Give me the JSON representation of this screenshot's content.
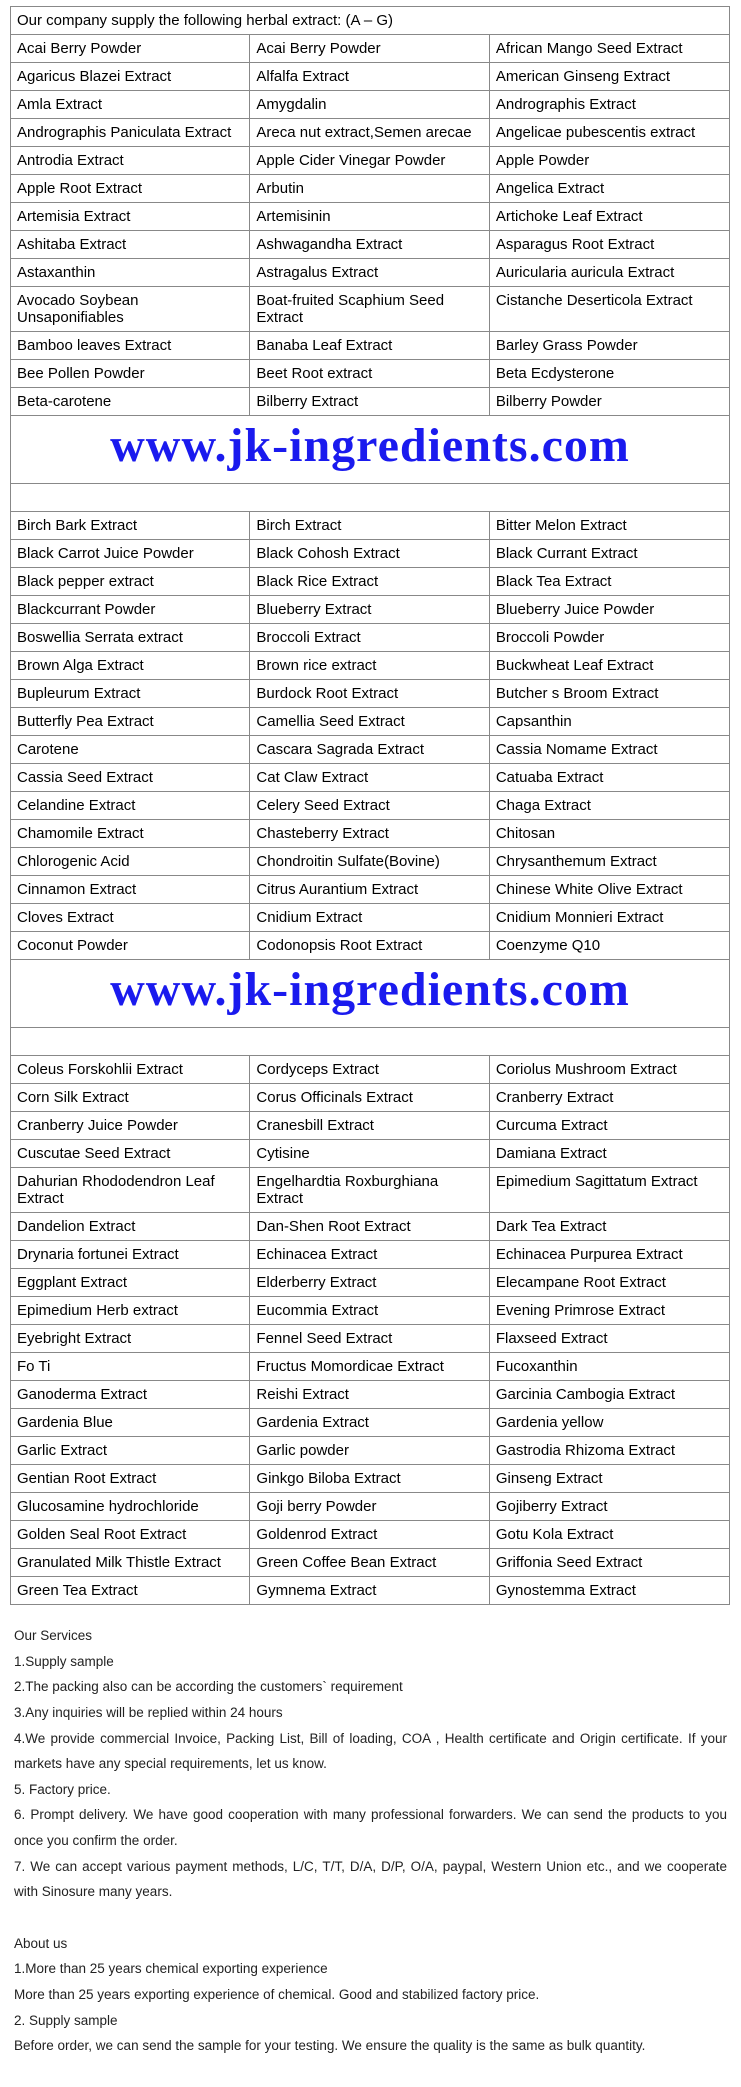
{
  "table": {
    "header": "Our company supply the following herbal extract:     (A – G)",
    "rows_section1": [
      [
        "Acai Berry Powder",
        "Acai Berry Powder",
        "African Mango Seed Extract"
      ],
      [
        "Agaricus Blazei Extract",
        "Alfalfa Extract",
        "American Ginseng Extract"
      ],
      [
        "Amla Extract",
        "Amygdalin",
        "Andrographis Extract"
      ],
      [
        "Andrographis Paniculata Extract",
        "Areca nut extract,Semen arecae",
        "Angelicae pubescentis extract"
      ],
      [
        "Antrodia Extract",
        "Apple Cider Vinegar Powder",
        "Apple Powder"
      ],
      [
        "Apple Root Extract",
        "Arbutin",
        "Angelica Extract"
      ],
      [
        "Artemisia Extract",
        "Artemisinin",
        "Artichoke Leaf Extract"
      ],
      [
        "Ashitaba Extract",
        "Ashwagandha Extract",
        "Asparagus Root Extract"
      ],
      [
        "Astaxanthin",
        "Astragalus Extract",
        "Auricularia auricula Extract"
      ],
      [
        "Avocado Soybean Unsaponifiables",
        "Boat-fruited Scaphium Seed Extract",
        "Cistanche Deserticola Extract"
      ],
      [
        "Bamboo leaves Extract",
        "Banaba Leaf Extract",
        "Barley Grass Powder"
      ],
      [
        "Bee Pollen Powder",
        "Beet Root extract",
        "Beta Ecdysterone"
      ],
      [
        "Beta-carotene",
        "Bilberry Extract",
        "Bilberry Powder"
      ]
    ],
    "rows_section2": [
      [
        "Birch Bark Extract",
        "Birch Extract",
        "Bitter Melon Extract"
      ],
      [
        "Black Carrot Juice Powder",
        "Black Cohosh Extract",
        "Black Currant Extract"
      ],
      [
        "Black pepper extract",
        "Black Rice Extract",
        "Black Tea Extract"
      ],
      [
        "Blackcurrant Powder",
        "Blueberry Extract",
        "Blueberry Juice Powder"
      ],
      [
        "Boswellia Serrata extract",
        "Broccoli Extract",
        "Broccoli Powder"
      ],
      [
        "Brown Alga Extract",
        "Brown rice extract",
        "Buckwheat Leaf Extract"
      ],
      [
        "Bupleurum Extract",
        "Burdock Root Extract",
        "Butcher s Broom Extract"
      ],
      [
        "Butterfly Pea Extract",
        "Camellia Seed Extract",
        "Capsanthin"
      ],
      [
        "Carotene",
        "Cascara Sagrada Extract",
        "Cassia Nomame Extract"
      ],
      [
        "Cassia Seed Extract",
        "Cat Claw Extract",
        "Catuaba Extract"
      ],
      [
        "Celandine Extract",
        "Celery Seed Extract",
        "Chaga Extract"
      ],
      [
        "Chamomile Extract",
        "Chasteberry Extract",
        "Chitosan"
      ],
      [
        "Chlorogenic Acid",
        "Chondroitin Sulfate(Bovine)",
        "Chrysanthemum Extract"
      ],
      [
        "Cinnamon Extract",
        "Citrus Aurantium Extract",
        "Chinese White Olive Extract"
      ],
      [
        "Cloves Extract",
        "Cnidium Extract",
        "Cnidium Monnieri Extract"
      ],
      [
        "Coconut Powder",
        "Codonopsis Root Extract",
        "Coenzyme Q10"
      ]
    ],
    "rows_section3": [
      [
        "Coleus Forskohlii Extract",
        "Cordyceps Extract",
        "Coriolus Mushroom Extract"
      ],
      [
        "Corn Silk Extract",
        "Corus Officinals Extract",
        "Cranberry Extract"
      ],
      [
        "Cranberry Juice Powder",
        "Cranesbill Extract",
        "Curcuma Extract"
      ],
      [
        "Cuscutae Seed Extract",
        "Cytisine",
        "Damiana Extract"
      ],
      [
        "Dahurian Rhododendron Leaf Extract",
        "Engelhardtia Roxburghiana Extract",
        "Epimedium Sagittatum Extract"
      ],
      [
        "Dandelion Extract",
        "Dan-Shen Root Extract",
        "Dark Tea Extract"
      ],
      [
        "Drynaria fortunei Extract",
        "Echinacea Extract",
        "Echinacea Purpurea Extract"
      ],
      [
        "Eggplant Extract",
        "Elderberry Extract",
        "Elecampane Root Extract"
      ],
      [
        "Epimedium Herb extract",
        "Eucommia Extract",
        "Evening Primrose Extract"
      ],
      [
        "Eyebright Extract",
        "Fennel Seed Extract",
        "Flaxseed Extract"
      ],
      [
        "Fo Ti",
        "Fructus Momordicae Extract",
        "Fucoxanthin"
      ],
      [
        "Ganoderma Extract",
        "Reishi Extract",
        "Garcinia Cambogia Extract"
      ],
      [
        "Gardenia Blue",
        "Gardenia Extract",
        "Gardenia yellow"
      ],
      [
        "Garlic Extract",
        "Garlic powder",
        "Gastrodia Rhizoma Extract"
      ],
      [
        "Gentian Root Extract",
        "Ginkgo Biloba Extract",
        "Ginseng Extract"
      ],
      [
        "Glucosamine hydrochloride",
        "Goji berry Powder",
        "Gojiberry Extract"
      ],
      [
        "Golden Seal Root Extract",
        "Goldenrod Extract",
        "Gotu Kola Extract"
      ],
      [
        "Granulated Milk Thistle Extract",
        "Green Coffee Bean Extract",
        "Griffonia Seed Extract"
      ],
      [
        "Green Tea Extract",
        "Gymnema Extract",
        "Gynostemma Extract"
      ]
    ],
    "watermark": "www.jk-ingredients.com",
    "watermark_color": "#1a1aee"
  },
  "services": {
    "title": "Our Services",
    "items": [
      "1.Supply sample",
      "2.The packing also can be according the customers` requirement",
      "3.Any inquiries will be replied within 24 hours",
      "4.We provide commercial Invoice, Packing List, Bill of loading, COA , Health certificate and Origin certificate. If your markets have any special requirements, let us know.",
      "5. Factory price.",
      "6. Prompt delivery. We have good cooperation with many professional forwarders. We can send the products to you once you confirm the order.",
      "7. We can accept various payment methods, L/C, T/T, D/A, D/P, O/A, paypal, Western Union etc., and we cooperate with Sinosure many years."
    ]
  },
  "about": {
    "title": "About us",
    "items": [
      "1.More than 25 years chemical exporting experience",
      "More than 25 years exporting experience of chemical. Good and stabilized factory price.",
      "2. Supply sample",
      "Before order, we can send the sample for your testing. We ensure the quality is the same as bulk quantity."
    ]
  }
}
